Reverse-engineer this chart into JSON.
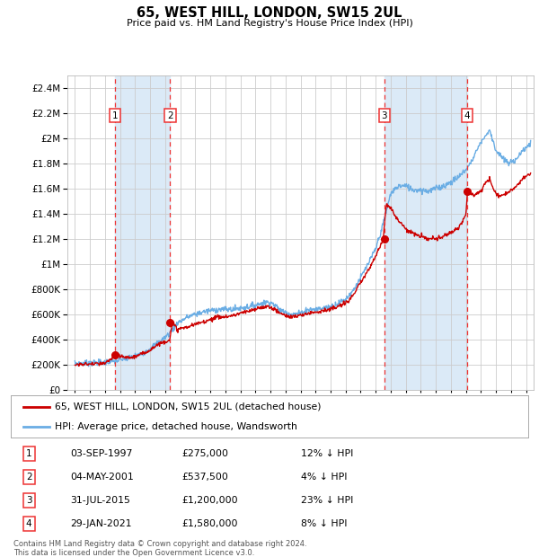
{
  "title": "65, WEST HILL, LONDON, SW15 2UL",
  "subtitle": "Price paid vs. HM Land Registry's House Price Index (HPI)",
  "footer1": "Contains HM Land Registry data © Crown copyright and database right 2024.",
  "footer2": "This data is licensed under the Open Government Licence v3.0.",
  "legend_line1": "65, WEST HILL, LONDON, SW15 2UL (detached house)",
  "legend_line2": "HPI: Average price, detached house, Wandsworth",
  "sale_labels": [
    "1",
    "2",
    "3",
    "4"
  ],
  "sale_dates_num": [
    1997.674,
    2001.337,
    2015.578,
    2021.075
  ],
  "sale_prices": [
    275000,
    537500,
    1200000,
    1580000
  ],
  "sale_table": [
    [
      "1",
      "03-SEP-1997",
      "£275,000",
      "12% ↓ HPI"
    ],
    [
      "2",
      "04-MAY-2001",
      "£537,500",
      "4% ↓ HPI"
    ],
    [
      "3",
      "31-JUL-2015",
      "£1,200,000",
      "23% ↓ HPI"
    ],
    [
      "4",
      "29-JAN-2021",
      "£1,580,000",
      "8% ↓ HPI"
    ]
  ],
  "hpi_color": "#6aade4",
  "sale_color": "#cc0000",
  "vline_color": "#ee3333",
  "shade_color": "#dbeaf7",
  "background_color": "#ffffff",
  "grid_color": "#cccccc",
  "ylim": [
    0,
    2500000
  ],
  "yticks": [
    0,
    200000,
    400000,
    600000,
    800000,
    1000000,
    1200000,
    1400000,
    1600000,
    1800000,
    2000000,
    2200000,
    2400000
  ],
  "xlim_start": 1994.5,
  "xlim_end": 2025.5,
  "xtick_years": [
    1995,
    1996,
    1997,
    1998,
    1999,
    2000,
    2001,
    2002,
    2003,
    2004,
    2005,
    2006,
    2007,
    2008,
    2009,
    2010,
    2011,
    2012,
    2013,
    2014,
    2015,
    2016,
    2017,
    2018,
    2019,
    2020,
    2021,
    2022,
    2023,
    2024,
    2025
  ]
}
